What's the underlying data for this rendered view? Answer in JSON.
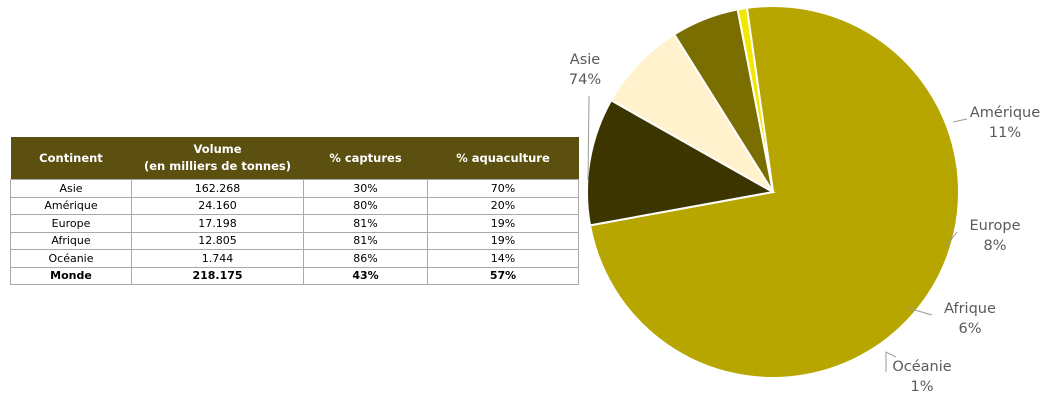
{
  "table": {
    "headers": [
      "Continent",
      "Volume\n(en milliers de tonnes)",
      "% captures",
      "% aquaculture"
    ],
    "rows": [
      [
        "Asie",
        "162.268",
        "30%",
        "70%"
      ],
      [
        "Amérique",
        "24.160",
        "80%",
        "20%"
      ],
      [
        "Europe",
        "17.198",
        "81%",
        "19%"
      ],
      [
        "Afrique",
        "12.805",
        "81%",
        "19%"
      ],
      [
        "Océanie",
        "1.744",
        "86%",
        "14%"
      ]
    ],
    "total": [
      "Monde",
      "218.175",
      "43%",
      "57%"
    ]
  },
  "chart_data": {
    "type": "pie",
    "categories": [
      "Asie",
      "Amérique",
      "Europe",
      "Afrique",
      "Océanie"
    ],
    "values": [
      162268,
      24160,
      17198,
      12805,
      1744
    ],
    "labels": [
      "74%",
      "11%",
      "8%",
      "6%",
      "1%"
    ],
    "colors": [
      "#b8a600",
      "#3d3500",
      "#fff2cc",
      "#7b6e00",
      "#f3e600"
    ]
  }
}
